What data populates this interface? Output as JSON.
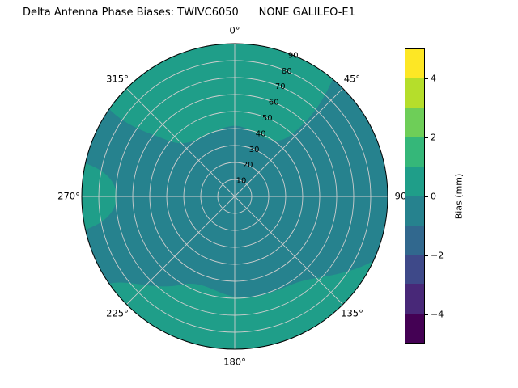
{
  "title": "Delta Antenna Phase Biases: TWIVC6050      NONE GALILEO-E1",
  "chart_data": {
    "type": "heatmap",
    "projection": "polar",
    "title": "Delta Antenna Phase Biases: TWIVC6050      NONE GALILEO-E1",
    "station": "TWIVC6050",
    "comparison": "NONE GALILEO-E1",
    "angular_tick_labels": [
      "0°",
      "45°",
      "90",
      "135°",
      "180°",
      "225°",
      "270°",
      "315°"
    ],
    "angular_tick_degrees": [
      0,
      45,
      90,
      135,
      180,
      225,
      270,
      315
    ],
    "radial_tick_labels": [
      "10",
      "20",
      "30",
      "40",
      "50",
      "60",
      "70",
      "80",
      "90"
    ],
    "radial_range_deg": [
      0,
      90
    ],
    "rlabel_angle_deg": 22.5,
    "grid": true,
    "value_bands": [
      {
        "bias_mm_range": [
          -1,
          0
        ],
        "color": "#26828e",
        "coverage": "base of disk: centre, right half and mid-left blob"
      },
      {
        "bias_mm_range": [
          0,
          1
        ],
        "color": "#1f9e89",
        "coverage": "top cap (zenith 40-90 around 0°), left rim near 270°, wide bottom outer region 115°-235°"
      }
    ],
    "colorbar": {
      "label": "Bias (mm)",
      "range": [
        -5,
        5
      ],
      "tick_values": [
        -4,
        -2,
        0,
        2,
        4
      ],
      "tick_labels": [
        "−4",
        "−2",
        "0",
        "2",
        "4"
      ],
      "band_colors_bottom_to_top": [
        "#440154",
        "#482878",
        "#3e4989",
        "#31688e",
        "#26828e",
        "#1f9e89",
        "#35b779",
        "#6ece58",
        "#b5de2b",
        "#fde725"
      ]
    }
  }
}
